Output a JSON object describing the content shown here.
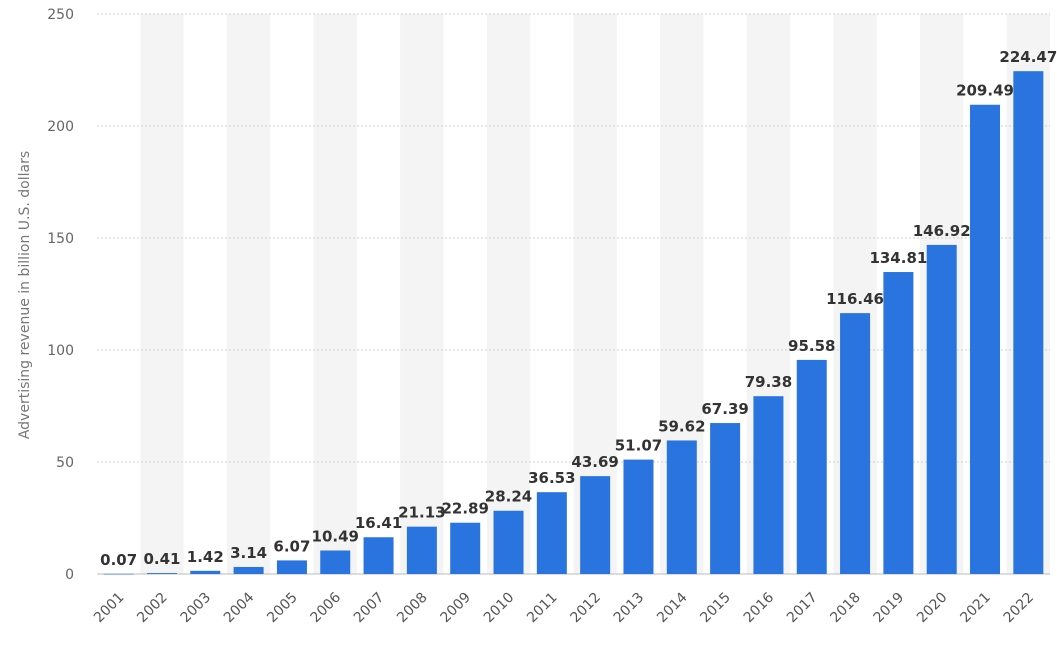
{
  "chart_data": {
    "type": "bar",
    "title": "",
    "xlabel": "",
    "ylabel": "Advertising revenue in billion U.S. dollars",
    "ylim": [
      0,
      250
    ],
    "yticks": [
      0,
      50,
      100,
      150,
      200,
      250
    ],
    "grid": true,
    "legend": "none",
    "bar_color": "#2a74e0",
    "band_color": "#f4f4f4",
    "categories": [
      "2001",
      "2002",
      "2003",
      "2004",
      "2005",
      "2006",
      "2007",
      "2008",
      "2009",
      "2010",
      "2011",
      "2012",
      "2013",
      "2014",
      "2015",
      "2016",
      "2017",
      "2018",
      "2019",
      "2020",
      "2021",
      "2022"
    ],
    "values": [
      0.07,
      0.41,
      1.42,
      3.14,
      6.07,
      10.49,
      16.41,
      21.13,
      22.89,
      28.24,
      36.53,
      43.69,
      51.07,
      59.62,
      67.39,
      79.38,
      95.58,
      116.46,
      134.81,
      146.92,
      209.49,
      224.47
    ],
    "value_labels": [
      "0.07",
      "0.41",
      "1.42",
      "3.14",
      "6.07",
      "10.49",
      "16.41",
      "21.13",
      "22.89",
      "28.24",
      "36.53",
      "43.69",
      "51.07",
      "59.62",
      "67.39",
      "79.38",
      "95.58",
      "116.46",
      "134.81",
      "146.92",
      "209.49",
      "224.47"
    ]
  }
}
